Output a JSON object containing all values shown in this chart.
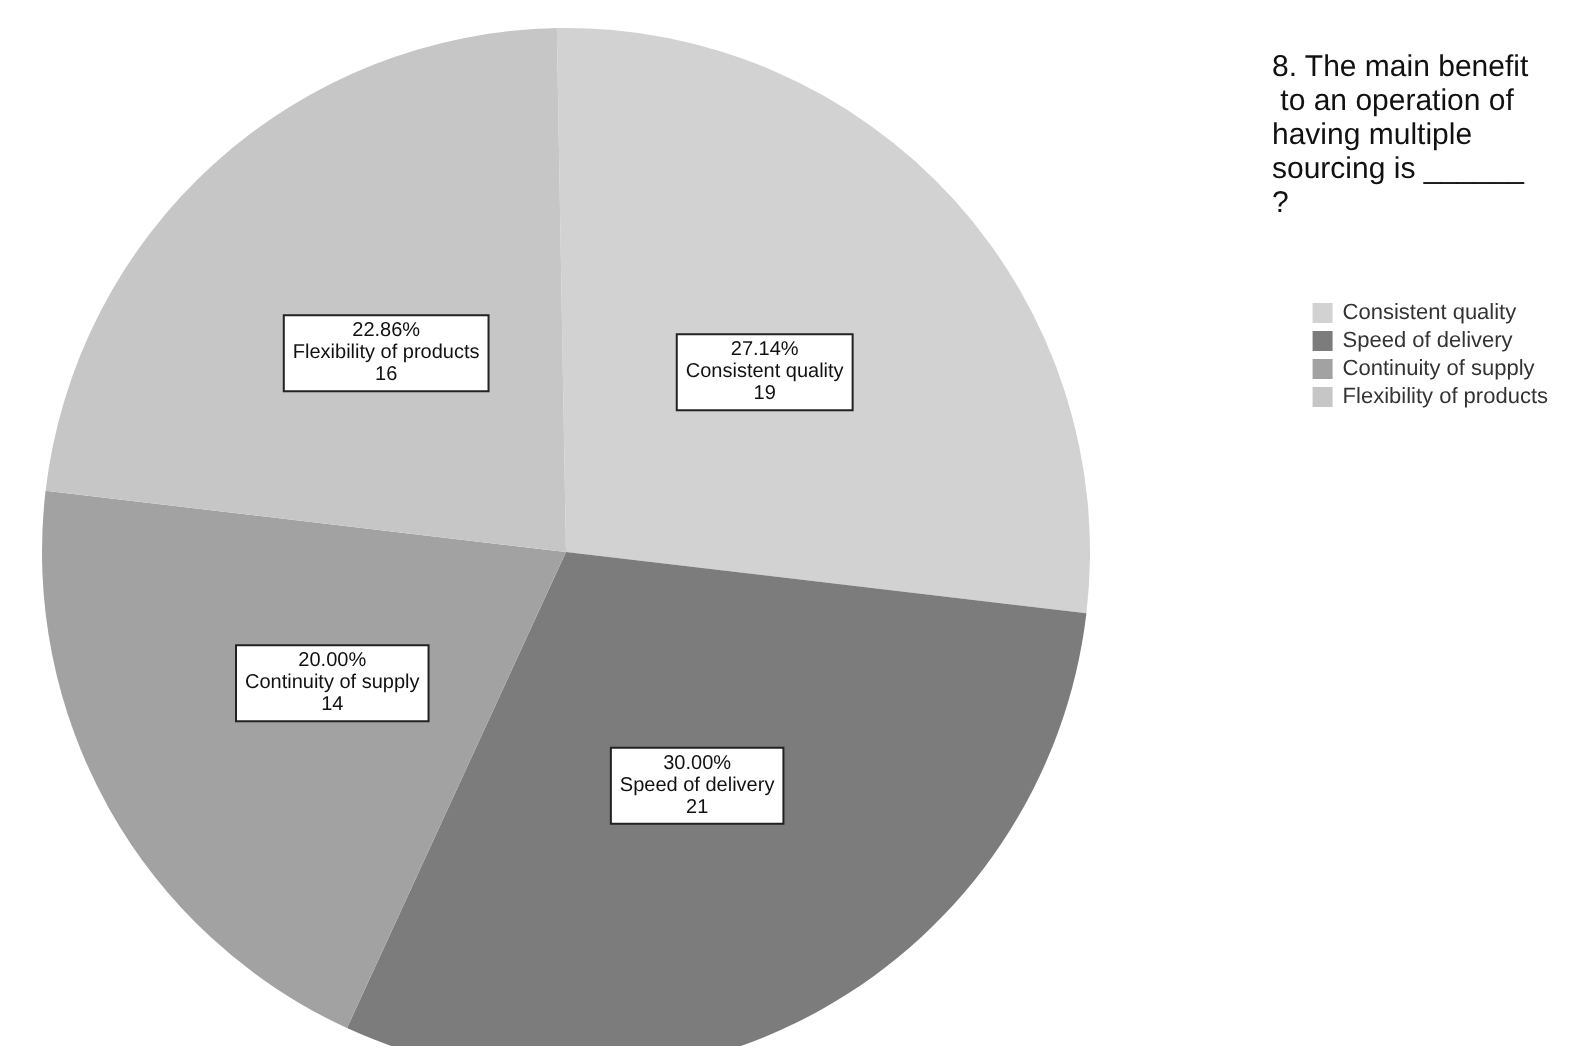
{
  "chart_data": {
    "type": "pie",
    "title": "8. The main benefit to an operation of having multiple sourcing is ______?",
    "categories": [
      "Consistent quality",
      "Speed of delivery",
      "Continuity of supply",
      "Flexibility of products"
    ],
    "values": [
      27.14,
      30.0,
      20.0,
      22.86
    ],
    "value_labels": [
      "27.14%\nConsistent quality\n19",
      "30.00%\nSpeed of delivery\n21",
      "20.00%\nContinuity of supply\n14",
      "22.86%\nFlexibility of products\n16"
    ],
    "colors": [
      "#d2d2d2",
      "#7c7c7c",
      "#a2a2a2",
      "#c6c6c6"
    ],
    "data_labels": true,
    "legend": "top right"
  }
}
